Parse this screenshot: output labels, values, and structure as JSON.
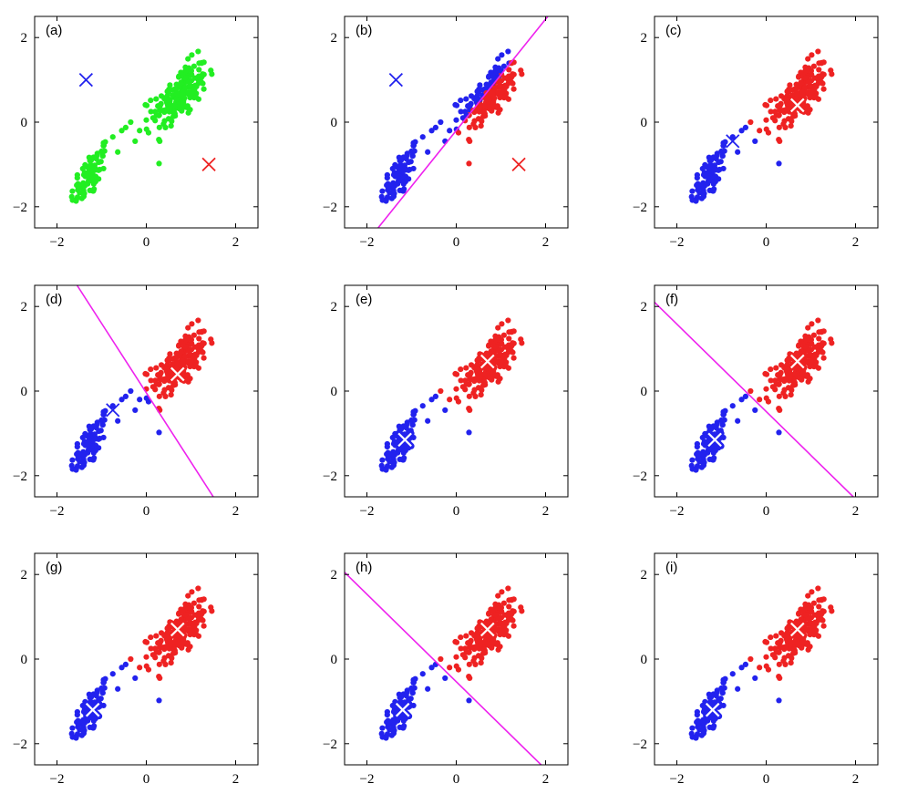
{
  "colors": {
    "green": "#22ee22",
    "blue": "#2222ee",
    "red": "#ee2222",
    "magenta": "#ee22ee",
    "white": "#ffffff"
  },
  "chart_data": [
    {
      "type": "scatter",
      "label": "(a)",
      "xlim": [
        -2.5,
        2.5
      ],
      "ylim": [
        -2.5,
        2.5
      ],
      "xticks": [
        "−2",
        "0",
        "2"
      ],
      "yticks": [
        "−2",
        "0",
        "2"
      ],
      "coloring": "all-green",
      "markers": [
        {
          "x": -1.35,
          "y": 1.0,
          "color": "blue",
          "style": "cross"
        },
        {
          "x": 1.4,
          "y": -1.0,
          "color": "red",
          "style": "cross"
        }
      ],
      "boundary": null
    },
    {
      "type": "scatter",
      "label": "(b)",
      "xlim": [
        -2.5,
        2.5
      ],
      "ylim": [
        -2.5,
        2.5
      ],
      "xticks": [
        "−2",
        "0",
        "2"
      ],
      "yticks": [
        "−2",
        "0",
        "2"
      ],
      "coloring": "split",
      "markers": [
        {
          "x": -1.35,
          "y": 1.0,
          "color": "blue",
          "style": "cross"
        },
        {
          "x": 1.4,
          "y": -1.0,
          "color": "red",
          "style": "cross"
        }
      ],
      "boundary": {
        "x1": -1.75,
        "y1": -2.5,
        "x2": 2.05,
        "y2": 2.5
      }
    },
    {
      "type": "scatter",
      "label": "(c)",
      "xlim": [
        -2.5,
        2.5
      ],
      "ylim": [
        -2.5,
        2.5
      ],
      "xticks": [
        "−2",
        "0",
        "2"
      ],
      "yticks": [
        "−2",
        "0",
        "2"
      ],
      "coloring": "split",
      "markers": [
        {
          "x": -0.75,
          "y": -0.45,
          "color": "blue",
          "style": "cross"
        },
        {
          "x": 0.7,
          "y": 0.4,
          "color": "red",
          "style": "haloed"
        }
      ],
      "boundary": null
    },
    {
      "type": "scatter",
      "label": "(d)",
      "xlim": [
        -2.5,
        2.5
      ],
      "ylim": [
        -2.5,
        2.5
      ],
      "xticks": [
        "−2",
        "0",
        "2"
      ],
      "yticks": [
        "−2",
        "0",
        "2"
      ],
      "coloring": "split",
      "markers": [
        {
          "x": -0.75,
          "y": -0.45,
          "color": "blue",
          "style": "cross"
        },
        {
          "x": 0.7,
          "y": 0.4,
          "color": "red",
          "style": "haloed"
        }
      ],
      "boundary": {
        "x1": -1.55,
        "y1": 2.5,
        "x2": 1.5,
        "y2": -2.5
      }
    },
    {
      "type": "scatter",
      "label": "(e)",
      "xlim": [
        -2.5,
        2.5
      ],
      "ylim": [
        -2.5,
        2.5
      ],
      "xticks": [
        "−2",
        "0",
        "2"
      ],
      "yticks": [
        "−2",
        "0",
        "2"
      ],
      "coloring": "split",
      "markers": [
        {
          "x": -1.15,
          "y": -1.15,
          "color": "blue",
          "style": "haloed"
        },
        {
          "x": 0.7,
          "y": 0.7,
          "color": "red",
          "style": "haloed"
        }
      ],
      "boundary": null
    },
    {
      "type": "scatter",
      "label": "(f)",
      "xlim": [
        -2.5,
        2.5
      ],
      "ylim": [
        -2.5,
        2.5
      ],
      "xticks": [
        "−2",
        "0",
        "2"
      ],
      "yticks": [
        "−2",
        "0",
        "2"
      ],
      "coloring": "split",
      "markers": [
        {
          "x": -1.15,
          "y": -1.15,
          "color": "blue",
          "style": "haloed"
        },
        {
          "x": 0.7,
          "y": 0.7,
          "color": "red",
          "style": "haloed"
        }
      ],
      "boundary": {
        "x1": -2.5,
        "y1": 2.1,
        "x2": 1.95,
        "y2": -2.5
      }
    },
    {
      "type": "scatter",
      "label": "(g)",
      "xlim": [
        -2.5,
        2.5
      ],
      "ylim": [
        -2.5,
        2.5
      ],
      "xticks": [
        "−2",
        "0",
        "2"
      ],
      "yticks": [
        "−2",
        "0",
        "2"
      ],
      "coloring": "split",
      "markers": [
        {
          "x": -1.2,
          "y": -1.2,
          "color": "blue",
          "style": "haloed"
        },
        {
          "x": 0.7,
          "y": 0.7,
          "color": "red",
          "style": "haloed"
        }
      ],
      "boundary": null
    },
    {
      "type": "scatter",
      "label": "(h)",
      "xlim": [
        -2.5,
        2.5
      ],
      "ylim": [
        -2.5,
        2.5
      ],
      "xticks": [
        "−2",
        "0",
        "2"
      ],
      "yticks": [
        "−2",
        "0",
        "2"
      ],
      "coloring": "split",
      "markers": [
        {
          "x": -1.2,
          "y": -1.2,
          "color": "blue",
          "style": "haloed"
        },
        {
          "x": 0.7,
          "y": 0.7,
          "color": "red",
          "style": "haloed"
        }
      ],
      "boundary": {
        "x1": -2.5,
        "y1": 2.05,
        "x2": 1.9,
        "y2": -2.5
      }
    },
    {
      "type": "scatter",
      "label": "(i)",
      "xlim": [
        -2.5,
        2.5
      ],
      "ylim": [
        -2.5,
        2.5
      ],
      "xticks": [
        "−2",
        "0",
        "2"
      ],
      "yticks": [
        "−2",
        "0",
        "2"
      ],
      "coloring": "split",
      "markers": [
        {
          "x": -1.2,
          "y": -1.2,
          "color": "blue",
          "style": "haloed"
        },
        {
          "x": 0.7,
          "y": 0.7,
          "color": "red",
          "style": "haloed"
        }
      ],
      "boundary": null
    }
  ]
}
